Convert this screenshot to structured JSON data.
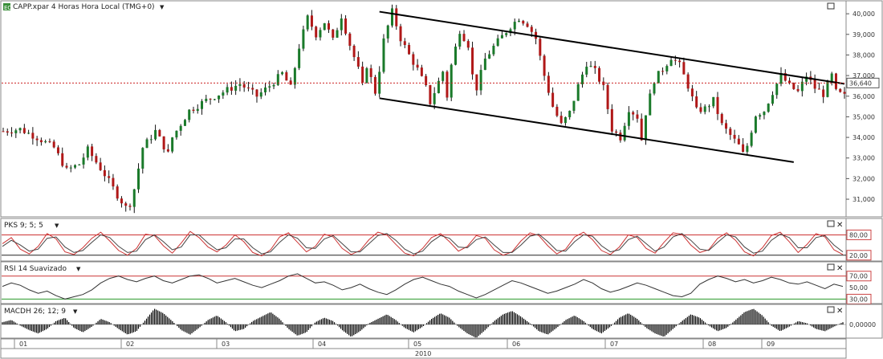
{
  "chart_data": [
    {
      "type": "candlestick",
      "title": "CAPP.xpar 4 Horas Hora Local (TMG+0)",
      "y_ticks": [
        "40,000",
        "39,000",
        "38,000",
        "37,000",
        "36,000",
        "35,000",
        "34,000",
        "33,000",
        "32,000",
        "31,000"
      ],
      "ylim": [
        30.3,
        40.2
      ],
      "last_price": 36.64,
      "last_price_label": "36,640",
      "x_months": [
        "01",
        "02",
        "03",
        "04",
        "05",
        "06",
        "07",
        "08",
        "09"
      ],
      "x_year": "2010",
      "close_path": [
        [
          0,
          34.3
        ],
        [
          4,
          34.4
        ],
        [
          8,
          34.0
        ],
        [
          12,
          33.5
        ],
        [
          15,
          32.4
        ],
        [
          18,
          32.7
        ],
        [
          20,
          33.4
        ],
        [
          24,
          32.2
        ],
        [
          27,
          31.2
        ],
        [
          29,
          30.6
        ],
        [
          30,
          30.8
        ],
        [
          31,
          31.5
        ],
        [
          33,
          33.5
        ],
        [
          36,
          34.3
        ],
        [
          39,
          33.2
        ],
        [
          40,
          34.0
        ],
        [
          44,
          35.3
        ],
        [
          48,
          35.8
        ],
        [
          52,
          36.2
        ],
        [
          56,
          36.6
        ],
        [
          60,
          36.0
        ],
        [
          63,
          36.5
        ],
        [
          66,
          37.1
        ],
        [
          68,
          36.4
        ],
        [
          70,
          38.4
        ],
        [
          72,
          39.8
        ],
        [
          74,
          39.0
        ],
        [
          76,
          39.6
        ],
        [
          78,
          38.7
        ],
        [
          80,
          39.9
        ],
        [
          82,
          38.5
        ],
        [
          84,
          37.3
        ],
        [
          85,
          36.5
        ],
        [
          86,
          37.5
        ],
        [
          88,
          36.2
        ],
        [
          89,
          37.3
        ],
        [
          90,
          38.7
        ],
        [
          92,
          40.1
        ],
        [
          94,
          38.8
        ],
        [
          96,
          38.0
        ],
        [
          98,
          37.3
        ],
        [
          100,
          36.4
        ],
        [
          101,
          35.7
        ],
        [
          102,
          36.2
        ],
        [
          104,
          37.2
        ],
        [
          105,
          36.0
        ],
        [
          106,
          37.5
        ],
        [
          108,
          39.2
        ],
        [
          110,
          38.5
        ],
        [
          111,
          37.0
        ],
        [
          112,
          36.4
        ],
        [
          114,
          37.8
        ],
        [
          116,
          38.4
        ],
        [
          118,
          38.9
        ],
        [
          120,
          39.4
        ],
        [
          122,
          39.8
        ],
        [
          124,
          39.5
        ],
        [
          126,
          38.8
        ],
        [
          128,
          37.0
        ],
        [
          130,
          35.5
        ],
        [
          132,
          34.6
        ],
        [
          134,
          35.2
        ],
        [
          136,
          36.5
        ],
        [
          138,
          37.6
        ],
        [
          140,
          37.2
        ],
        [
          142,
          36.4
        ],
        [
          144,
          34.4
        ],
        [
          146,
          34.0
        ],
        [
          148,
          35.4
        ],
        [
          150,
          35.0
        ],
        [
          151,
          33.9
        ],
        [
          152,
          35.2
        ],
        [
          154,
          36.8
        ],
        [
          156,
          37.3
        ],
        [
          158,
          37.9
        ],
        [
          160,
          37.5
        ],
        [
          162,
          36.5
        ],
        [
          164,
          35.3
        ],
        [
          166,
          35.4
        ],
        [
          168,
          35.8
        ],
        [
          170,
          34.6
        ],
        [
          172,
          34.1
        ],
        [
          174,
          33.6
        ],
        [
          175,
          33.2
        ],
        [
          176,
          33.6
        ],
        [
          178,
          35.1
        ],
        [
          180,
          35.3
        ],
        [
          182,
          36.2
        ],
        [
          184,
          37.0
        ],
        [
          186,
          36.5
        ],
        [
          188,
          36.2
        ],
        [
          190,
          37.0
        ],
        [
          192,
          36.4
        ],
        [
          194,
          36.1
        ],
        [
          196,
          37.0
        ],
        [
          197,
          36.2
        ],
        [
          199,
          36.0
        ]
      ],
      "channel_upper": [
        [
          89,
          40.1
        ],
        [
          199,
          36.6
        ]
      ],
      "channel_lower": [
        [
          89,
          35.9
        ],
        [
          187,
          32.8
        ]
      ]
    },
    {
      "type": "line",
      "title": "PKS 9; 5; 5",
      "y_ticks": [
        "80,00",
        "20,00"
      ],
      "ylim": [
        10,
        100
      ],
      "levels": [
        80,
        20
      ],
      "series": [
        {
          "name": "",
          "values": [
            54,
            72,
            38,
            24,
            46,
            84,
            68,
            30,
            22,
            42,
            70,
            88,
            62,
            34,
            20,
            40,
            82,
            78,
            48,
            26,
            56,
            90,
            72,
            44,
            30,
            50,
            80,
            60,
            28,
            18,
            36,
            74,
            86,
            58,
            30,
            46,
            82,
            74,
            40,
            22,
            34,
            66,
            88,
            80,
            52,
            26,
            18,
            40,
            72,
            84,
            60,
            32,
            46,
            78,
            70,
            36,
            20,
            30,
            62,
            86,
            78,
            48,
            24,
            38,
            74,
            88,
            66,
            34,
            22,
            44,
            80,
            72,
            40,
            26,
            58,
            86,
            82,
            50,
            28,
            36,
            70,
            86,
            64,
            30,
            18,
            42,
            78,
            88,
            60,
            28,
            52,
            84,
            74,
            36,
            22
          ]
        },
        {
          "name": "",
          "values": [
            46,
            64,
            50,
            32,
            38,
            70,
            74,
            44,
            28,
            34,
            58,
            80,
            72,
            46,
            28,
            32,
            66,
            80,
            60,
            36,
            44,
            80,
            80,
            56,
            36,
            42,
            68,
            68,
            42,
            24,
            30,
            58,
            80,
            70,
            42,
            40,
            68,
            78,
            54,
            30,
            30,
            54,
            78,
            84,
            64,
            38,
            24,
            32,
            60,
            78,
            70,
            44,
            42,
            66,
            74,
            50,
            28,
            28,
            50,
            76,
            82,
            60,
            34,
            32,
            60,
            80,
            76,
            48,
            30,
            36,
            66,
            76,
            54,
            32,
            44,
            74,
            84,
            64,
            38,
            34,
            58,
            80,
            74,
            44,
            26,
            32,
            64,
            82,
            72,
            42,
            42,
            72,
            78,
            50,
            30
          ]
        }
      ]
    },
    {
      "type": "line",
      "title": "RSI 14 Suavizado",
      "y_ticks": [
        "70,00",
        "50,00",
        "30,00"
      ],
      "ylim": [
        25,
        78
      ],
      "levels": [
        70,
        30
      ],
      "series": [
        {
          "name": "",
          "values": [
            52,
            58,
            54,
            46,
            40,
            44,
            36,
            30,
            34,
            38,
            46,
            58,
            66,
            70,
            64,
            60,
            66,
            70,
            62,
            58,
            64,
            70,
            72,
            66,
            58,
            62,
            66,
            60,
            54,
            50,
            56,
            62,
            70,
            74,
            66,
            58,
            60,
            54,
            46,
            50,
            56,
            48,
            42,
            38,
            46,
            56,
            64,
            68,
            62,
            56,
            52,
            44,
            38,
            32,
            38,
            46,
            54,
            62,
            58,
            52,
            46,
            40,
            44,
            50,
            56,
            64,
            58,
            48,
            42,
            46,
            52,
            58,
            54,
            48,
            42,
            36,
            34,
            40,
            56,
            64,
            70,
            66,
            60,
            64,
            58,
            62,
            68,
            64,
            58,
            56,
            60,
            54,
            48,
            56,
            52
          ]
        }
      ]
    },
    {
      "type": "bar",
      "title": "MACDH 26; 12; 9",
      "y_ticks": [
        "0,00000"
      ],
      "series": [
        {
          "name": "",
          "values": [
            0.2,
            0.4,
            -0.1,
            -0.5,
            -0.8,
            -0.4,
            0.3,
            0.6,
            -0.3,
            -0.7,
            -0.2,
            0.5,
            0.2,
            -0.4,
            -0.9,
            -0.6,
            0.4,
            1.4,
            1.0,
            0.3,
            -0.5,
            -0.9,
            -0.3,
            0.4,
            0.8,
            0.2,
            -0.6,
            -0.4,
            0.3,
            0.7,
            1.1,
            0.5,
            -0.4,
            -1.0,
            -0.7,
            0.2,
            0.6,
            0.3,
            -0.5,
            -1.1,
            -0.6,
            0.1,
            0.5,
            0.9,
            0.4,
            -0.3,
            -0.7,
            -0.2,
            0.5,
            1.0,
            0.6,
            -0.2,
            -0.8,
            -1.2,
            -0.5,
            0.3,
            0.9,
            1.2,
            0.7,
            0.1,
            -0.6,
            -0.9,
            -0.3,
            0.4,
            0.8,
            0.3,
            -0.4,
            -0.8,
            -0.2,
            0.6,
            1.0,
            0.5,
            -0.3,
            -0.8,
            -1.1,
            -0.4,
            0.3,
            0.9,
            0.6,
            -0.1,
            -0.6,
            -0.3,
            0.4,
            1.1,
            1.4,
            0.8,
            -0.1,
            -0.6,
            -0.2,
            0.3,
            0.1,
            -0.4,
            -0.6,
            -0.2,
            0.2
          ]
        }
      ]
    }
  ]
}
